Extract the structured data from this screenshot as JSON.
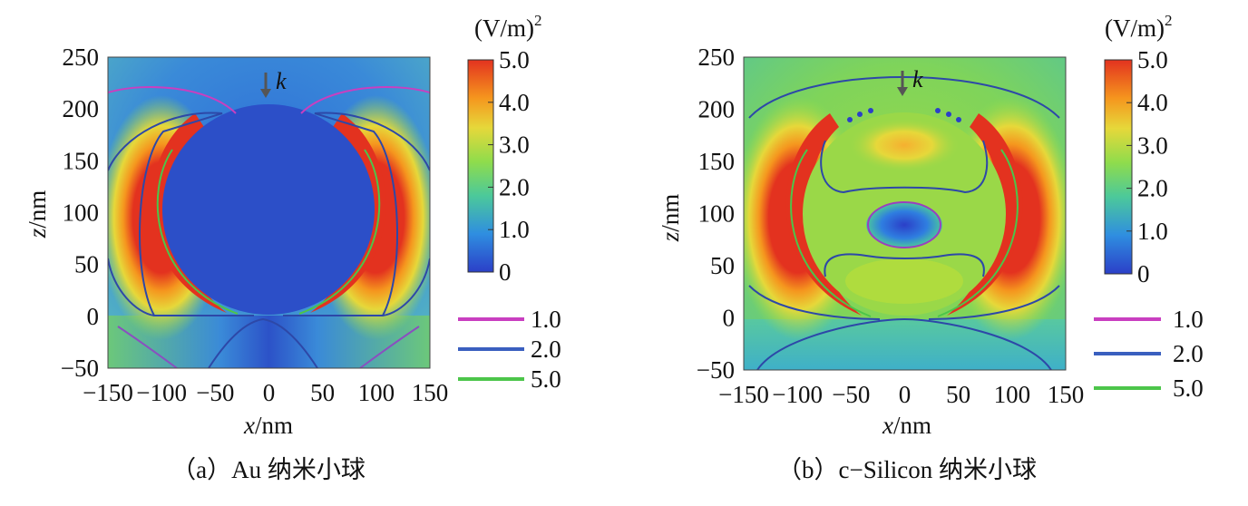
{
  "chart_data": [
    {
      "type": "heatmap",
      "panel": "a",
      "caption": "（a）Au 纳米小球",
      "xlabel_var": "x",
      "xlabel_unit": "/nm",
      "ylabel_var": "z",
      "ylabel_unit": "/nm",
      "xlim": [
        -150,
        150
      ],
      "ylim": [
        -50,
        250
      ],
      "xticks": [
        "−150",
        "−100",
        "−50",
        "0",
        "50",
        "100",
        "150"
      ],
      "yticks": [
        "250",
        "200",
        "150",
        "100",
        "50",
        "0",
        "−50"
      ],
      "xtick_values": [
        -150,
        -100,
        -50,
        0,
        50,
        100,
        150
      ],
      "ytick_values": [
        250,
        200,
        150,
        100,
        50,
        0,
        -50
      ],
      "colorbar": {
        "unit": "(V/m)",
        "unit_power": "2",
        "range": [
          0,
          5.0
        ],
        "ticks": [
          "5.0",
          "4.0",
          "3.0",
          "2.0",
          "1.0",
          "0"
        ],
        "tick_values": [
          5,
          4,
          3,
          2,
          1,
          0
        ],
        "colors": [
          "#2b3fc8",
          "#2f8ee0",
          "#4cc99a",
          "#8fdc4c",
          "#e6d83a",
          "#f5961e",
          "#e3321f"
        ]
      },
      "incident_label": "k",
      "sphere": {
        "center_z": 100,
        "radius": 100
      },
      "substrate_z": 0,
      "contour_legend": [
        {
          "level": "1.0",
          "color": "#c93fc0"
        },
        {
          "level": "2.0",
          "color": "#3a5fbf"
        },
        {
          "level": "5.0",
          "color": "#4cc54a"
        }
      ]
    },
    {
      "type": "heatmap",
      "panel": "b",
      "caption": "（b）c−Silicon 纳米小球",
      "xlabel_var": "x",
      "xlabel_unit": "/nm",
      "ylabel_var": "z",
      "ylabel_unit": "/nm",
      "xlim": [
        -150,
        150
      ],
      "ylim": [
        -50,
        250
      ],
      "xticks": [
        "−150",
        "−100",
        "−50",
        "0",
        "50",
        "100",
        "150"
      ],
      "yticks": [
        "250",
        "200",
        "150",
        "100",
        "50",
        "0",
        "−50"
      ],
      "xtick_values": [
        -150,
        -100,
        -50,
        0,
        50,
        100,
        150
      ],
      "ytick_values": [
        250,
        200,
        150,
        100,
        50,
        0,
        -50
      ],
      "colorbar": {
        "unit": "(V/m)",
        "unit_power": "2",
        "range": [
          0,
          5.0
        ],
        "ticks": [
          "5.0",
          "4.0",
          "3.0",
          "2.0",
          "1.0",
          "0"
        ],
        "tick_values": [
          5,
          4,
          3,
          2,
          1,
          0
        ],
        "colors": [
          "#2b3fc8",
          "#2f8ee0",
          "#4cc99a",
          "#8fdc4c",
          "#e6d83a",
          "#f5961e",
          "#e3321f"
        ]
      },
      "incident_label": "k",
      "sphere": {
        "center_z": 100,
        "radius": 100
      },
      "substrate_z": 0,
      "contour_legend": [
        {
          "level": "1.0",
          "color": "#c93fc0"
        },
        {
          "level": "2.0",
          "color": "#3a5fbf"
        },
        {
          "level": "5.0",
          "color": "#4cc54a"
        }
      ]
    }
  ]
}
